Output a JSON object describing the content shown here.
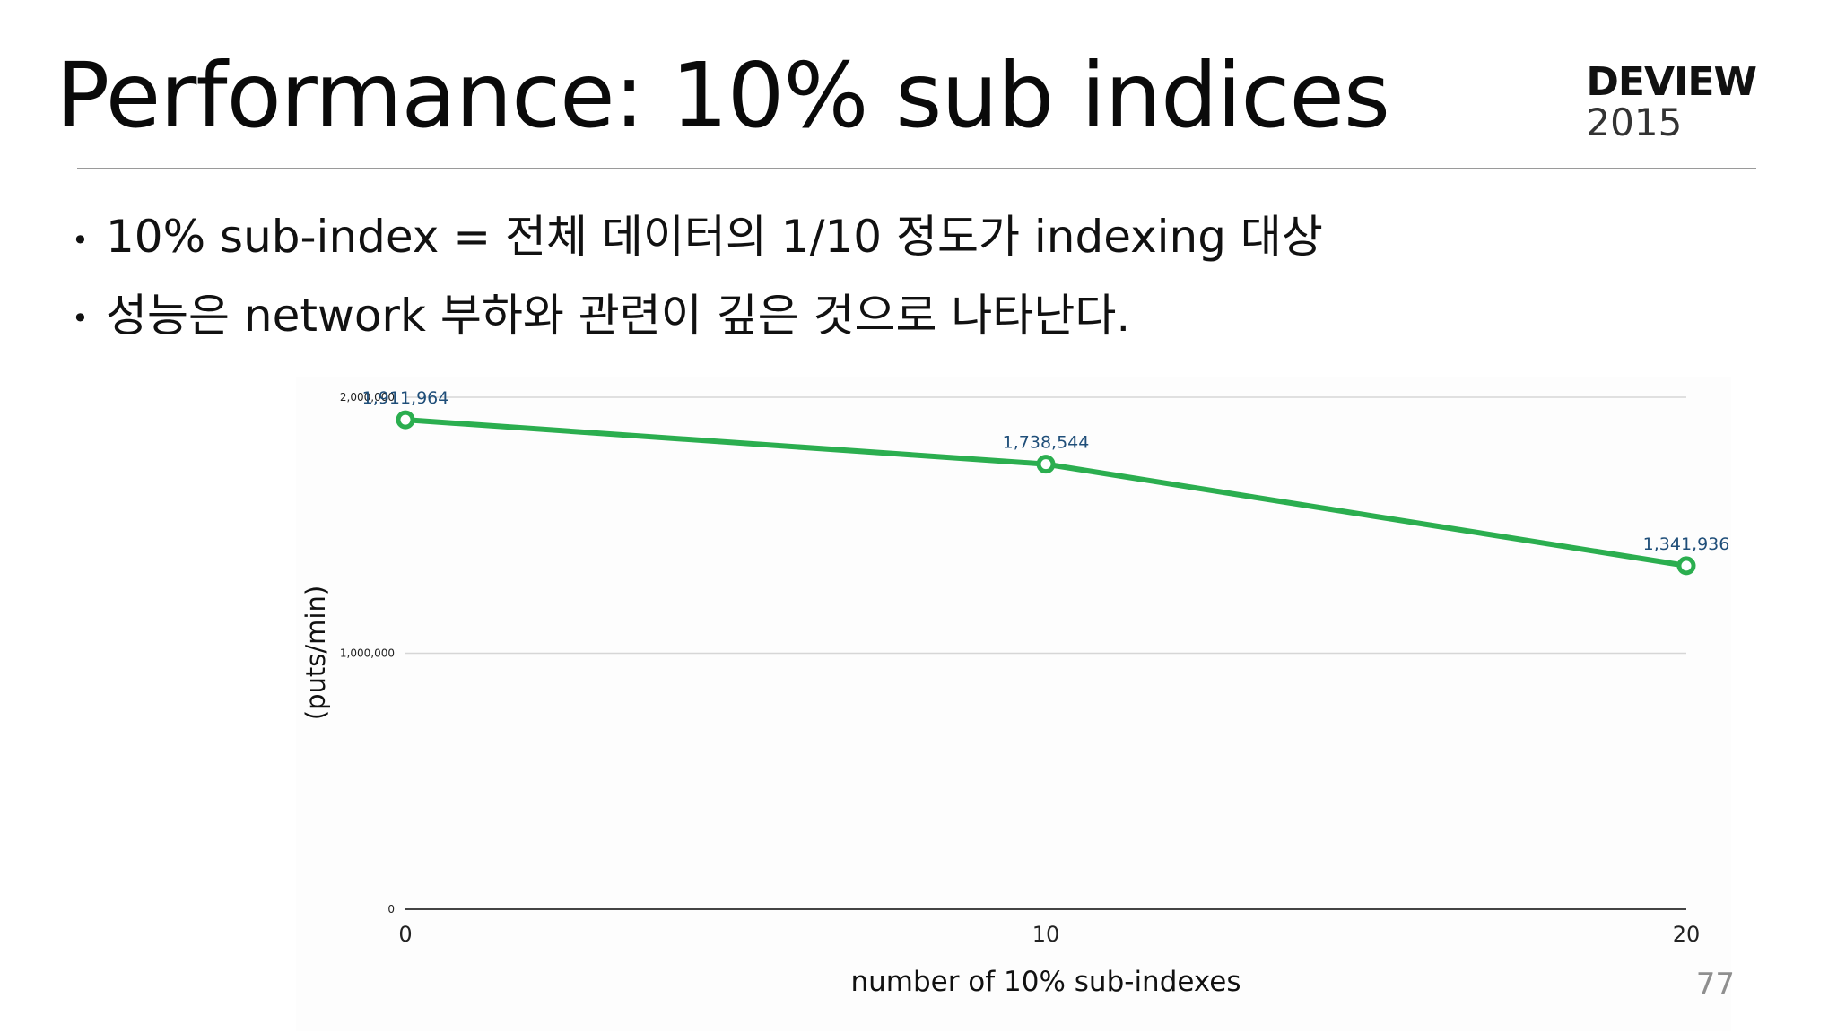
{
  "slide": {
    "title": "Performance: 10% sub indices",
    "brand": {
      "name": "DEVIEW",
      "year": "2015"
    },
    "bullets": [
      "10% sub-index = 전체 데이터의 1/10 정도가 indexing 대상",
      "성능은 network 부하와 관련이 깊은 것으로 나타난다."
    ],
    "page_number": "77"
  },
  "chart_data": {
    "type": "line",
    "title": "",
    "xlabel": "number of 10% sub-indexes",
    "ylabel": "(puts/min)",
    "x": [
      0,
      10,
      20
    ],
    "x_ticks": [
      "0",
      "10",
      "20"
    ],
    "y_ticks": [
      {
        "value": 0,
        "label": "0"
      },
      {
        "value": 1000000,
        "label": "1,000,000"
      },
      {
        "value": 2000000,
        "label": "2,000,000"
      }
    ],
    "xlim": [
      0,
      20
    ],
    "ylim": [
      0,
      2000000
    ],
    "grid": true,
    "legend": "none",
    "series": [
      {
        "values": [
          1911964,
          1738544,
          1341936
        ],
        "data_labels": [
          "1,911,964",
          "1,738,544",
          "1,341,936"
        ],
        "color": "#2bae4f"
      }
    ],
    "colors": {
      "line": "#2bae4f",
      "data_label": "#1f4e79",
      "grid": "#d6d6d6",
      "axis": "#444444",
      "tick_label": "#222222"
    }
  }
}
